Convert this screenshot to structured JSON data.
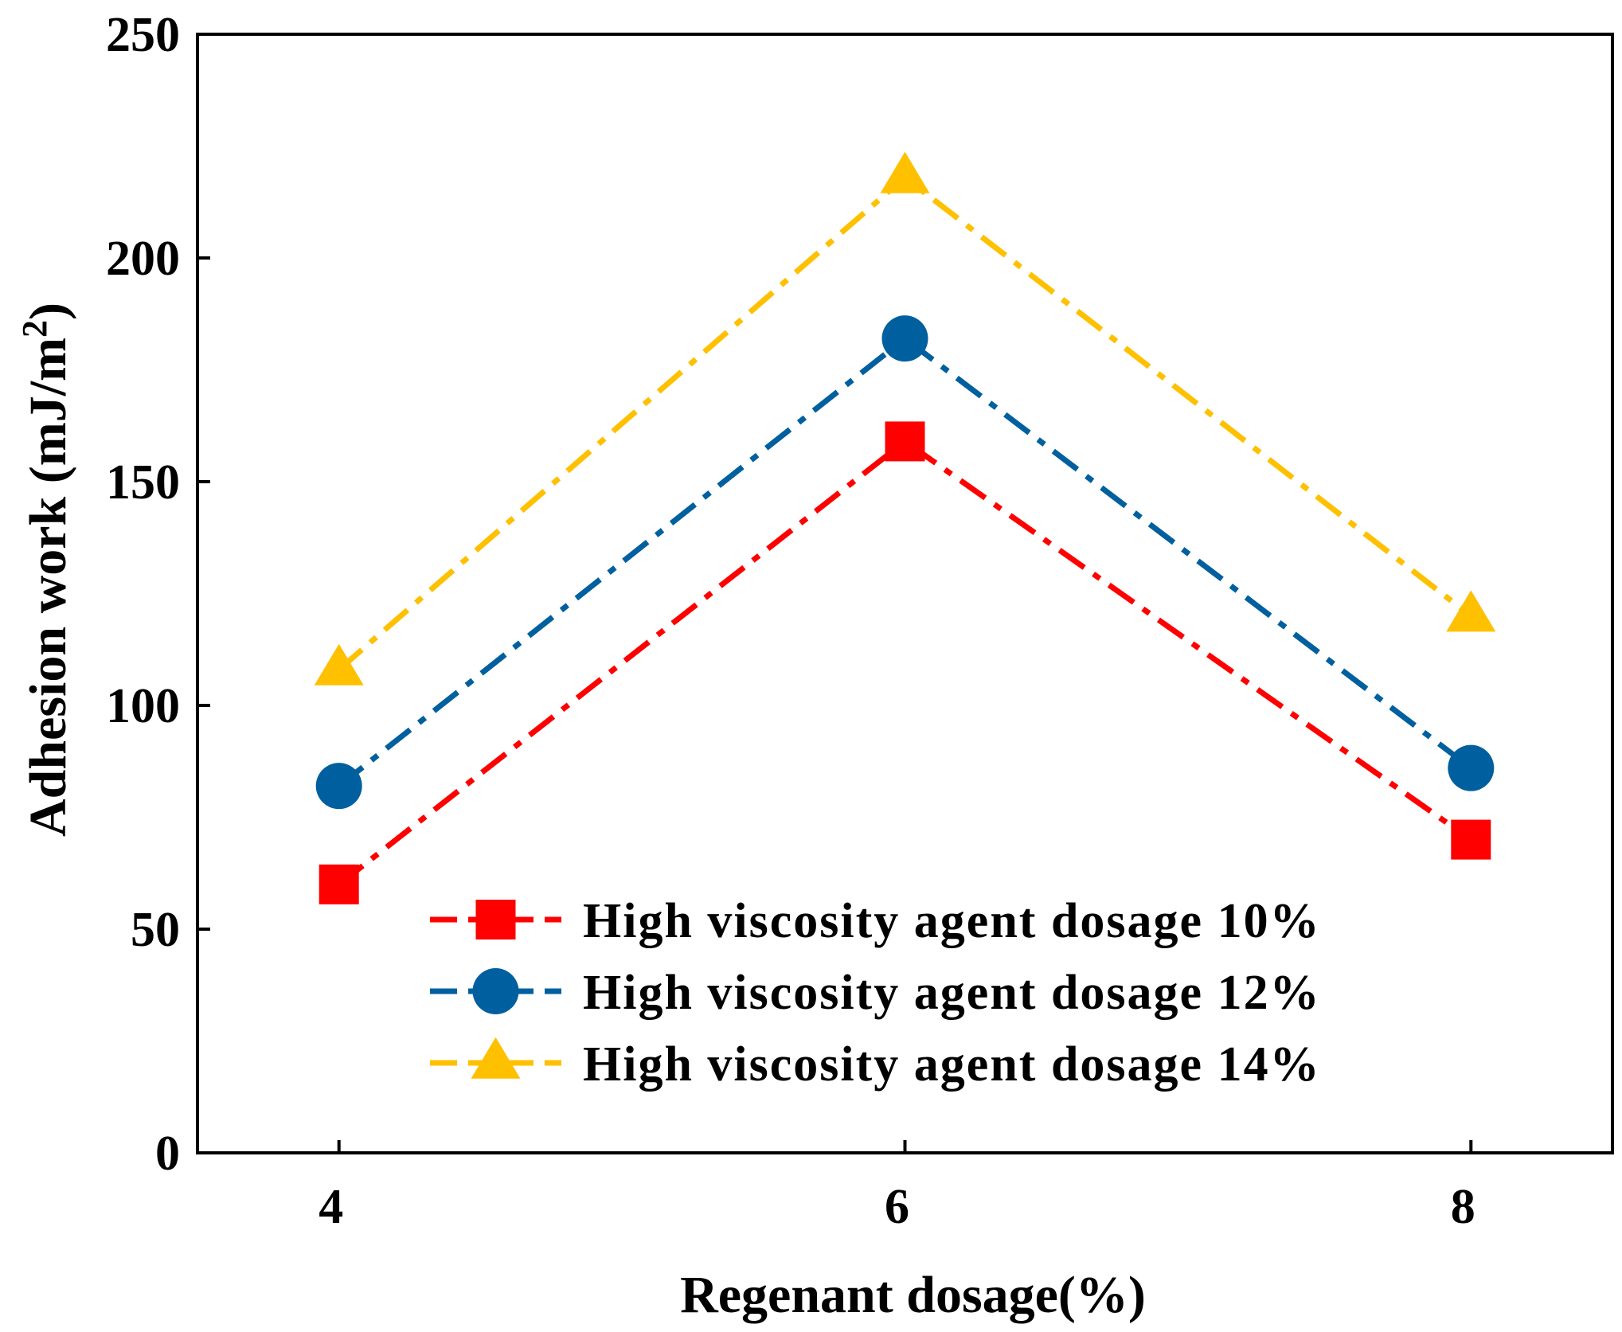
{
  "chart_data": {
    "type": "line",
    "title": "",
    "xlabel": "Regenant dosage(%)",
    "ylabel": "Adhesion work (mJ/m",
    "ylabel_superscript": "2",
    "ylabel_close": ")",
    "x": [
      4,
      6,
      8
    ],
    "x_tick_labels": [
      "4",
      "6",
      "8"
    ],
    "xlim": [
      3.5,
      8.5
    ],
    "ylim": [
      0,
      250
    ],
    "y_ticks": [
      0,
      50,
      100,
      150,
      200,
      250
    ],
    "y_tick_labels": [
      "0",
      "50",
      "100",
      "150",
      "200",
      "250"
    ],
    "grid": false,
    "legend_position": "bottom-right",
    "series": [
      {
        "name": "High viscosity agent dosage 10%",
        "values": [
          60,
          159,
          70
        ],
        "color": "#ff0000",
        "marker": "square",
        "line_style": "dash-dot"
      },
      {
        "name": "High viscosity agent dosage 12%",
        "values": [
          82,
          182,
          86
        ],
        "color": "#00609f",
        "marker": "circle",
        "line_style": "dash-dot"
      },
      {
        "name": "High viscosity agent dosage 14%",
        "values": [
          108,
          218,
          120
        ],
        "color": "#ffc000",
        "marker": "triangle",
        "line_style": "dash-dot"
      }
    ]
  }
}
